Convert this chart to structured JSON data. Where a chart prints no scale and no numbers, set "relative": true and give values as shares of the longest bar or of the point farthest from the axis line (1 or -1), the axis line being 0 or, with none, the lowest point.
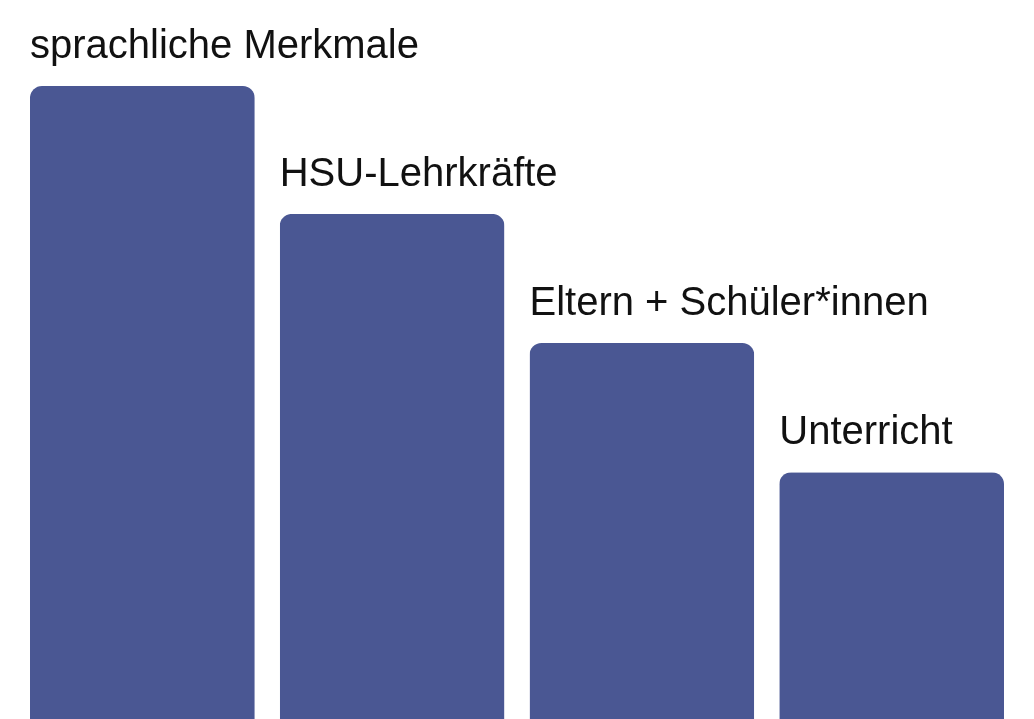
{
  "chart_data": {
    "type": "bar",
    "relative": true,
    "categories": [
      "sprachliche Merkmale",
      "HSU-Lehrkräfte",
      "Eltern + Schüler*innen",
      "Unterricht"
    ],
    "values": [
      1,
      0.798,
      0.594,
      0.39
    ],
    "color": "#4a5793"
  }
}
